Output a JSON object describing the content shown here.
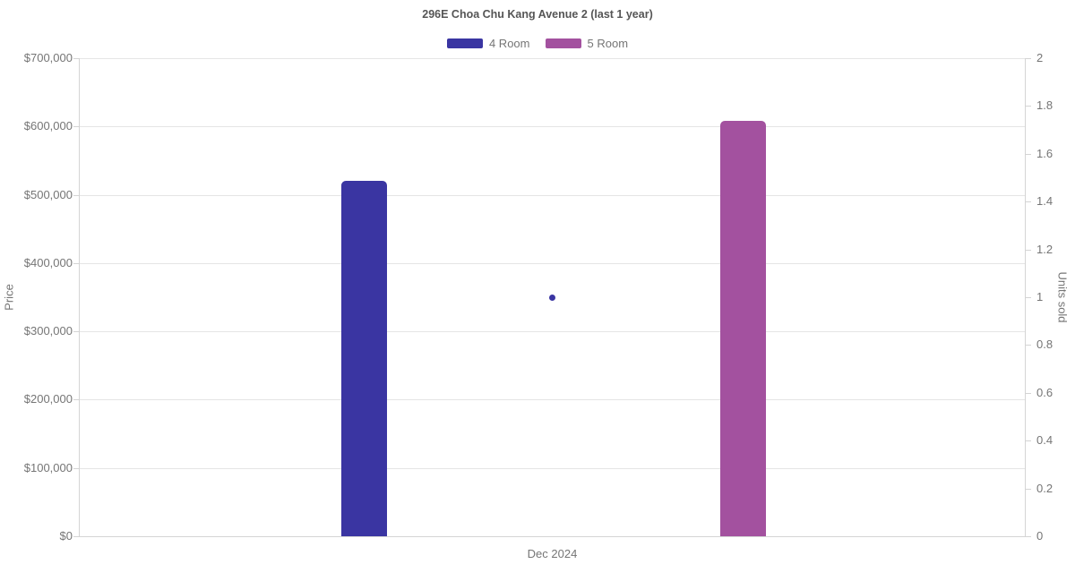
{
  "chart": {
    "title": "296E Choa Chu Kang Avenue 2 (last 1 year)",
    "x_label": "Dec 2024",
    "legend": [
      {
        "label": "4 Room",
        "color": "#3A35A2"
      },
      {
        "label": "5 Room",
        "color": "#A3519F"
      }
    ],
    "left_axis_title": "Price",
    "right_axis_title": "Units sold"
  },
  "chart_data": {
    "type": "bar",
    "title": "296E Choa Chu Kang Avenue 2 (last 1 year)",
    "categories": [
      "Dec 2024"
    ],
    "series": [
      {
        "name": "4 Room",
        "type": "bar",
        "yaxis": "left",
        "values": [
          520000
        ],
        "color": "#3A35A2"
      },
      {
        "name": "5 Room",
        "type": "bar",
        "yaxis": "left",
        "values": [
          608000
        ],
        "color": "#A3519F"
      },
      {
        "name": "4 Room",
        "type": "scatter",
        "yaxis": "right",
        "values": [
          1
        ],
        "color": "#3A35A2"
      }
    ],
    "xlabel": "",
    "left_axis": {
      "label": "Price",
      "min": 0,
      "max": 700000,
      "tick_step": 100000,
      "tick_labels": [
        "$700,000",
        "$600,000",
        "$500,000",
        "$400,000",
        "$300,000",
        "$200,000",
        "$100,000",
        "$0"
      ]
    },
    "right_axis": {
      "label": "Units sold",
      "min": 0,
      "max": 2,
      "tick_step": 0.2,
      "tick_labels": [
        "2",
        "1.8",
        "1.6",
        "1.4",
        "1.2",
        "1",
        "0.8",
        "0.6",
        "0.4",
        "0.2",
        "0"
      ]
    },
    "grid": "horizontal",
    "legend_position": "top"
  }
}
